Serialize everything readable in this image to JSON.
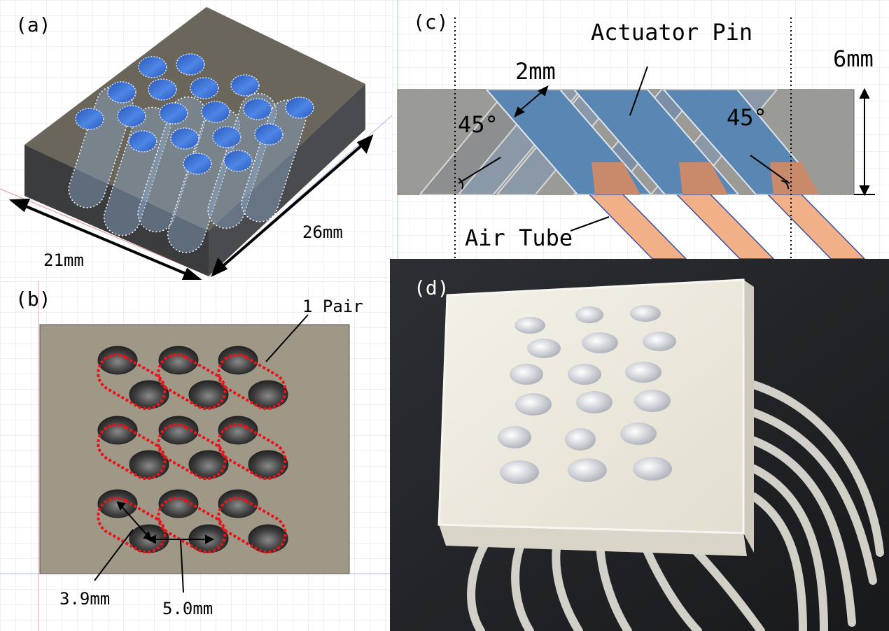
{
  "panels": {
    "a": {
      "tag": "(a)",
      "width_label": "21mm",
      "depth_label": "26mm"
    },
    "b": {
      "tag": "(b)",
      "pair_label": "1 Pair",
      "diameter_label": "3.9mm",
      "pitch_label": "5.0mm"
    },
    "c": {
      "tag": "(c)",
      "pin_label": "Actuator Pin",
      "tube_label": "Air Tube",
      "pin_width_label": "2mm",
      "thickness_label": "6mm",
      "angle_left_label": "45°",
      "angle_right_label": "45°"
    },
    "d": {
      "tag": "(d)"
    }
  },
  "colors": {
    "block_top": "#6b665c",
    "block_side": "#3c3d3f",
    "pin_blue": "#3b6fd0",
    "plate": "#9f9887",
    "pair_outline": "#e8141a",
    "section_gray": "#9a9a96",
    "channel_blue": "#5d86b2",
    "tube_orange": "#f2b088",
    "photo_bg": "#222528",
    "printed_part": "#ece8dc"
  }
}
